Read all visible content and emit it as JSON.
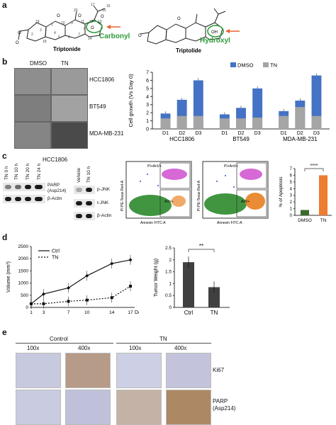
{
  "panel_a": {
    "letter": "a",
    "triptonide": "Triptonide",
    "triptolide": "Triptolide",
    "carbonyl": "Carbonyl",
    "hydroxyl": "Hydroxyl",
    "atom_labels": [
      "19",
      "18",
      "1",
      "2",
      "3",
      "4",
      "5",
      "6",
      "7",
      "8",
      "9",
      "10",
      "11",
      "12",
      "13",
      "14",
      "15",
      "16",
      "17",
      "20",
      "O",
      "O",
      "O",
      "O",
      "O",
      "O",
      "O",
      "O",
      "OH"
    ]
  },
  "panel_b": {
    "letter": "b",
    "col_headers": [
      "DMSO",
      "TN"
    ],
    "row_labels": [
      "HCC1806",
      "BT549",
      "MDA-MB-231"
    ],
    "chart_data": {
      "type": "bar",
      "ylabel": "Cell growth (Vs Day 0)",
      "ylim": [
        0,
        7
      ],
      "yticks": [
        "0",
        "1",
        "2",
        "3",
        "4",
        "5",
        "6",
        "7"
      ],
      "groups": [
        "HCC1806",
        "BT549",
        "MDA-MB-231"
      ],
      "categories": [
        "D1",
        "D2",
        "D3"
      ],
      "series": [
        {
          "name": "DMSO",
          "color": "#4472c4",
          "values": [
            [
              1.9,
              3.6,
              6.0
            ],
            [
              1.8,
              2.6,
              5.0
            ],
            [
              2.2,
              3.5,
              6.6
            ]
          ]
        },
        {
          "name": "TN",
          "color": "#a5a5a5",
          "values": [
            [
              1.3,
              1.6,
              1.6
            ],
            [
              1.3,
              1.3,
              1.4
            ],
            [
              1.6,
              2.7,
              1.6
            ]
          ]
        }
      ]
    }
  },
  "panel_c": {
    "letter": "c",
    "cell_line": "HCC1806",
    "lanes_left": [
      "TN 0 h",
      "TN 10 h",
      "TN 20 h",
      "TN 24 h"
    ],
    "blot_labels_left": [
      "PARP",
      "(Asp214)",
      "β-Actin"
    ],
    "lanes_right": [
      "Vehicle",
      "TN 10 h"
    ],
    "blot_labels_right": [
      "p-JNK",
      "t-JNK",
      "β-Actin"
    ],
    "flow_ylabel": "PI PE-Texas Red-A",
    "flow_xlabel": "Annexin FITC-A",
    "q_pi_anv": "PI+AnV+",
    "q_anv": "AnV+",
    "chart_data": {
      "type": "bar",
      "ylabel": "% of Apoptosis",
      "ylim": [
        0,
        7
      ],
      "yticks": [
        "0",
        "1",
        "2",
        "3",
        "4",
        "5",
        "6",
        "7"
      ],
      "categories": [
        "DMSO",
        "TN"
      ],
      "values": [
        0.8,
        6.0
      ],
      "colors": [
        "#3a6b2a",
        "#ed7d31"
      ],
      "significance": "****"
    }
  },
  "panel_d": {
    "letter": "d",
    "chart_data": [
      {
        "type": "line",
        "ylabel": "Volume (mm³)",
        "xlabel": "Day",
        "x": [
          1,
          3,
          7,
          10,
          14,
          17
        ],
        "xticks": [
          "1",
          "3",
          "7",
          "10",
          "14",
          "17"
        ],
        "ylim": [
          0,
          2500
        ],
        "yticks": [
          "0",
          "500",
          "1000",
          "1500",
          "2000",
          "2500"
        ],
        "series": [
          {
            "name": "Ctrl",
            "values": [
              150,
              550,
              800,
              1300,
              1800,
              1950
            ]
          },
          {
            "name": "TN",
            "values": [
              150,
              150,
              250,
              300,
              400,
              870
            ]
          }
        ]
      },
      {
        "type": "bar",
        "ylabel": "Tumor Weight (g)",
        "ylim": [
          0,
          2.5
        ],
        "yticks": [
          "0",
          "0.5",
          "1",
          "1.5",
          "2",
          "2.5"
        ],
        "categories": [
          "Ctrl",
          "TN"
        ],
        "values": [
          1.9,
          0.85
        ],
        "significance": "**"
      }
    ]
  },
  "panel_e": {
    "letter": "e",
    "groups": [
      "Control",
      "TN"
    ],
    "mags": [
      "100x",
      "400x",
      "100x",
      "400x"
    ],
    "rows": [
      "Ki67",
      "PARP",
      "(Asp214)"
    ]
  }
}
